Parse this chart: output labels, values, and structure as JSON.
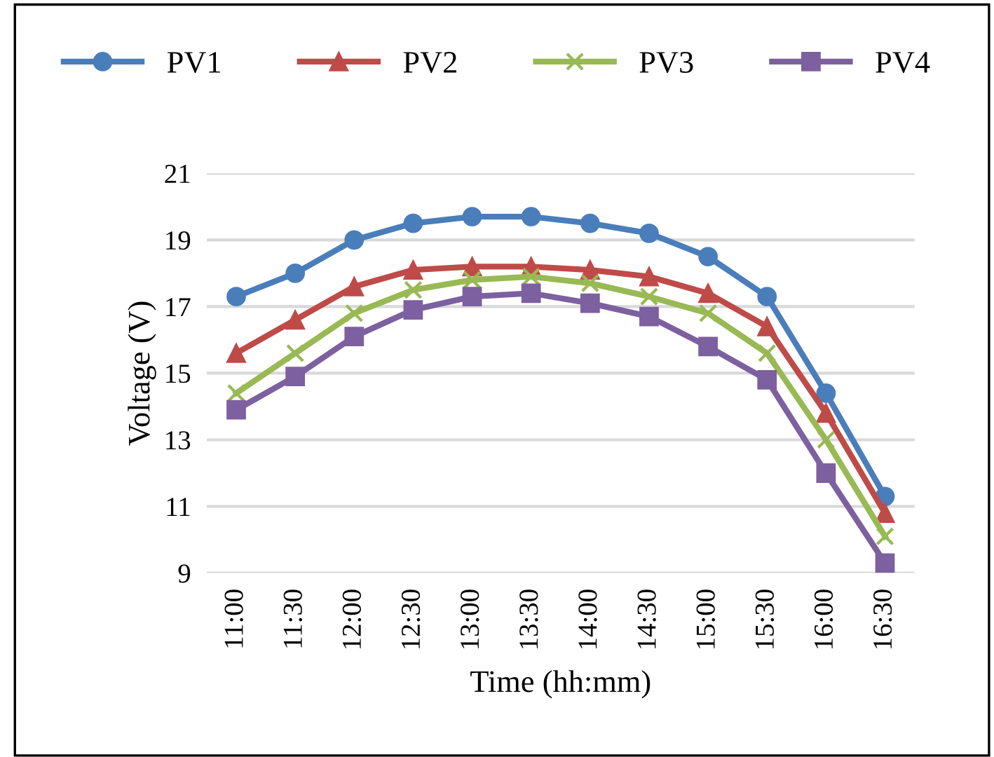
{
  "chart_data": {
    "type": "line",
    "xlabel": "Time (hh:mm)",
    "ylabel": "Voltage (V)",
    "categories": [
      "11:00",
      "11:30",
      "12:00",
      "12:30",
      "13:00",
      "13:30",
      "14:00",
      "14:30",
      "15:00",
      "15:30",
      "16:00",
      "16:30"
    ],
    "series": [
      {
        "name": "PV1",
        "color": "#4a7ebb",
        "marker": "circle",
        "values": [
          17.3,
          18.0,
          19.0,
          19.5,
          19.7,
          19.7,
          19.5,
          19.2,
          18.5,
          17.3,
          14.4,
          11.3
        ]
      },
      {
        "name": "PV2",
        "color": "#be4b48",
        "marker": "triangle",
        "values": [
          15.6,
          16.6,
          17.6,
          18.1,
          18.2,
          18.2,
          18.1,
          17.9,
          17.4,
          16.4,
          13.8,
          10.8
        ]
      },
      {
        "name": "PV3",
        "color": "#98b954",
        "marker": "cross",
        "values": [
          14.4,
          15.6,
          16.8,
          17.5,
          17.8,
          17.9,
          17.7,
          17.3,
          16.8,
          15.6,
          13.0,
          10.1
        ]
      },
      {
        "name": "PV4",
        "color": "#7d60a0",
        "marker": "square",
        "values": [
          13.9,
          14.9,
          16.1,
          16.9,
          17.3,
          17.4,
          17.1,
          16.7,
          15.8,
          14.8,
          12.0,
          9.3
        ]
      }
    ],
    "ylim": [
      9,
      21
    ],
    "yticks": [
      9,
      11,
      13,
      15,
      17,
      19,
      21
    ],
    "grid": "y",
    "legend": "top",
    "line_style": "solid"
  }
}
